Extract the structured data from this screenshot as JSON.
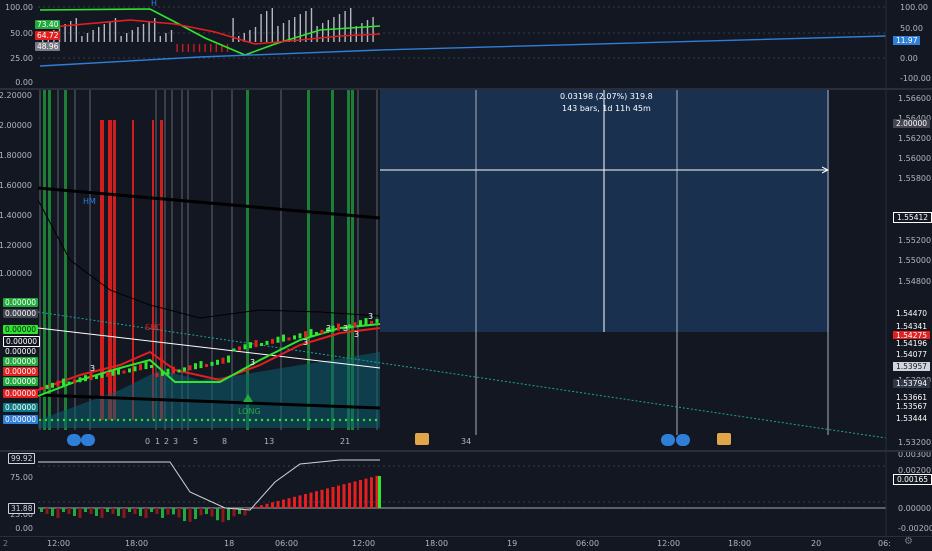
{
  "colors": {
    "bg": "#131722",
    "grid": "#363a45",
    "green": "#22ab3d",
    "bright_green": "#2ee62e",
    "red": "#e51f1f",
    "blue": "#2f7fd8",
    "teal": "#0b5f6e",
    "box": "#1e3a5f",
    "white": "#ffffff"
  },
  "top_pane": {
    "left_axis": [
      "100.00",
      "50.00",
      "25.00",
      "0.00"
    ],
    "left_badges": [
      {
        "text": "73.40",
        "color": "#22ab3d"
      },
      {
        "text": "64.72",
        "color": "#e51f1f"
      },
      {
        "text": "48.96",
        "color": "#787b86"
      }
    ],
    "right_axis": [
      "100.00",
      "50.00",
      "0.00",
      "-100.00"
    ],
    "right_badge": "11.97",
    "h_marker": "H"
  },
  "main_pane": {
    "left_axis": [
      "2.20000",
      "2.00000",
      "1.80000",
      "1.60000",
      "1.40000",
      "1.20000",
      "1.00000"
    ],
    "left_badges": [
      "0.00000",
      "0.00000",
      "0.00000",
      "0.00000",
      "0.00000",
      "0.00000",
      "0.00000",
      "0.00000",
      "0.00000",
      "0.00000",
      "0.00000"
    ],
    "right_axis": [
      "1.56600",
      "1.56400",
      "1.56200",
      "1.56000",
      "1.55800",
      "1.55200",
      "1.55000",
      "1.54800",
      "1.53800",
      "1.53200"
    ],
    "right_badges": [
      {
        "text": "2.00000",
        "color": "#434651"
      },
      {
        "text": "1.55412",
        "color": "#131722",
        "border": "#ffffff"
      },
      {
        "text": "1.54470",
        "color": "#131722",
        "border": "#ffffff"
      },
      {
        "text": "1.54341",
        "color": "#131722",
        "border": "#ffffff"
      },
      {
        "text": "1.54275",
        "color": "#e51f1f"
      },
      {
        "text": "1.54196",
        "color": "#131722",
        "border": "#ffffff"
      },
      {
        "text": "1.54077",
        "color": "#131722",
        "border": "#ffffff"
      },
      {
        "text": "1.53957",
        "color": "#d1d4dc"
      },
      {
        "text": "1.53794",
        "color": "#2f3646"
      },
      {
        "text": "1.53661",
        "color": "#131722",
        "border": "#ffffff"
      },
      {
        "text": "1.53567",
        "color": "#131722",
        "border": "#ffffff"
      },
      {
        "text": "1.53444",
        "color": "#131722",
        "border": "#ffffff"
      }
    ],
    "measure_line1": "0.03198 (2.07%) 319.8",
    "measure_line2": "143 bars, 1d 11h 45m",
    "labels": {
      "hm": "HM",
      "short": "SHO",
      "long": "LONG"
    },
    "count_labels": [
      "0",
      "1",
      "2",
      "3",
      "5",
      "8",
      "13",
      "21",
      "34"
    ],
    "pattern_numbers": [
      "3",
      "3",
      "3",
      "3",
      "3",
      "3",
      "3"
    ]
  },
  "bottom_pane": {
    "left_axis": [
      "99.92",
      "75.00",
      "31.88",
      "25.00",
      "0.00"
    ],
    "right_axis": [
      "0.00300",
      "0.00200",
      "0.00165",
      "0.00000",
      "-0.00200"
    ],
    "right_badge": "0.00165"
  },
  "time_axis": [
    "12:00",
    "18:00",
    "18",
    "06:00",
    "12:00",
    "18:00",
    "19",
    "06:00",
    "12:00",
    "18:00",
    "20",
    "06:"
  ]
}
